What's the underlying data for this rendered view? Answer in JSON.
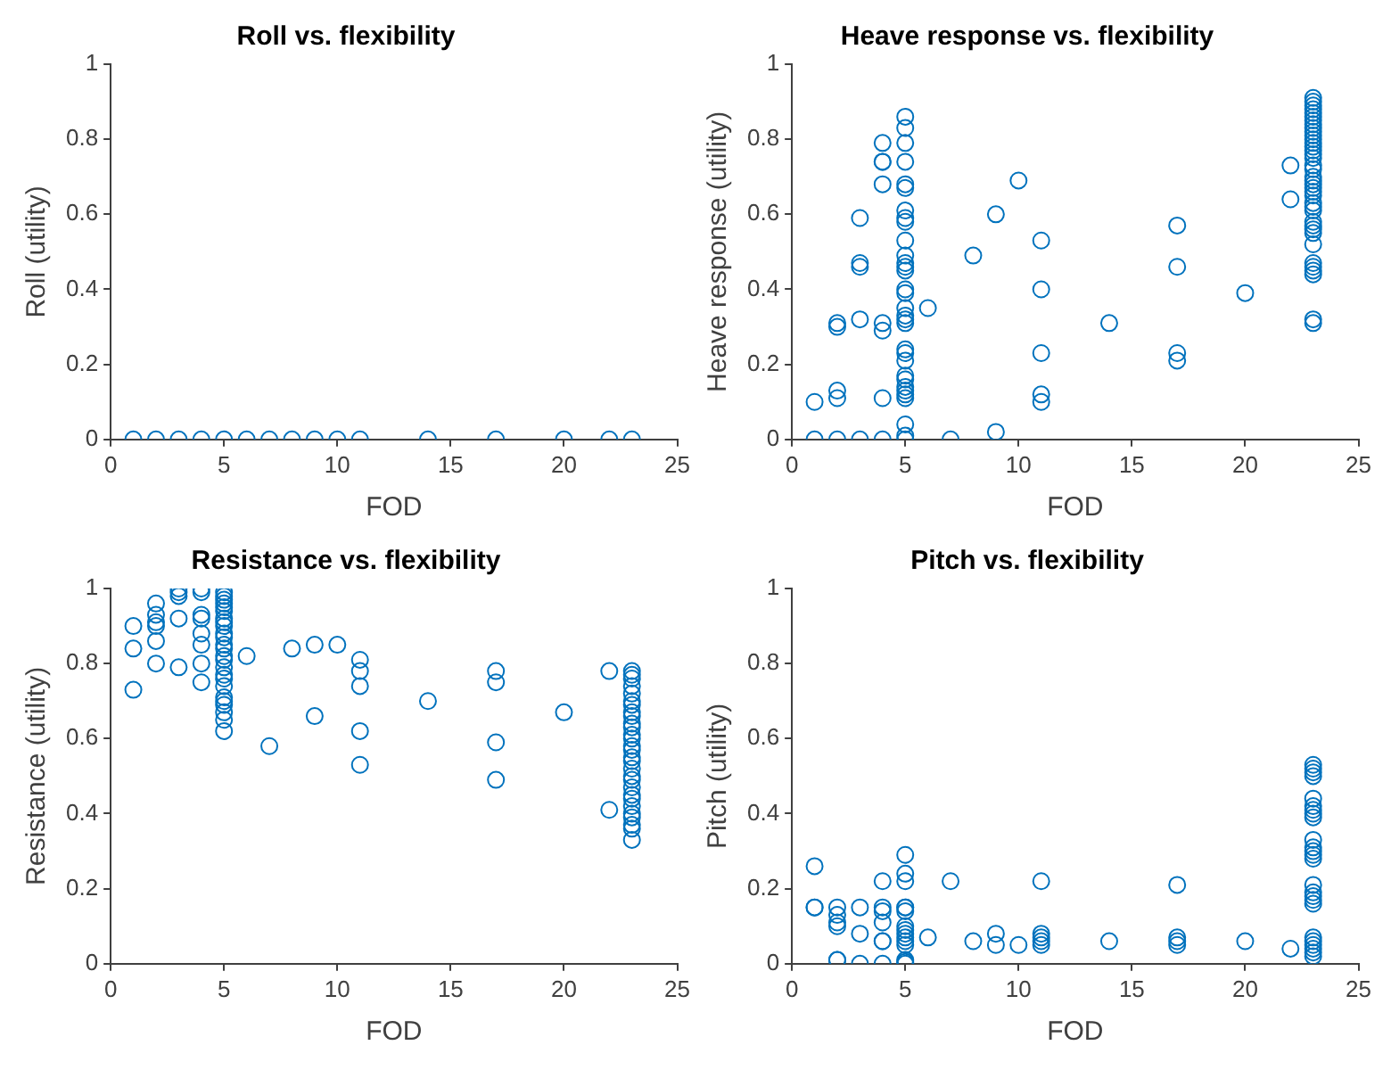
{
  "chart_data": [
    {
      "type": "scatter",
      "title": "Roll vs. flexibility",
      "xlabel": "FOD",
      "ylabel": "Roll (utility)",
      "xlim": [
        0,
        25
      ],
      "xticks": [
        0,
        5,
        10,
        15,
        20,
        25
      ],
      "ylim": [
        0,
        1
      ],
      "yticks": [
        0,
        0.2,
        0.4,
        0.6,
        0.8,
        1
      ],
      "grid": false,
      "marker": "circle",
      "legend": false,
      "series": [
        {
          "color": "#0072bd",
          "x": [
            1,
            2,
            3,
            4,
            5,
            6,
            7,
            8,
            9,
            10,
            11,
            14,
            17,
            20,
            22,
            23
          ],
          "values": [
            0,
            0,
            0,
            0,
            0,
            0,
            0,
            0,
            0,
            0,
            0,
            0,
            0,
            0,
            0,
            0
          ]
        }
      ]
    },
    {
      "type": "scatter",
      "title": "Heave response vs. flexibility",
      "xlabel": "FOD",
      "ylabel": "Heave response (utility)",
      "xlim": [
        0,
        25
      ],
      "xticks": [
        0,
        5,
        10,
        15,
        20,
        25
      ],
      "ylim": [
        0,
        1
      ],
      "yticks": [
        0,
        0.2,
        0.4,
        0.6,
        0.8,
        1
      ],
      "grid": false,
      "marker": "circle",
      "legend": false,
      "series": [
        {
          "color": "#0072bd",
          "x": [
            1,
            1,
            2,
            2,
            2,
            2,
            2,
            3,
            3,
            3,
            3,
            3,
            4,
            4,
            4,
            4,
            4,
            4,
            4,
            4,
            5,
            5,
            5,
            5,
            5,
            5,
            5,
            5,
            5,
            5,
            5,
            5,
            5,
            5,
            5,
            5,
            5,
            5,
            5,
            5,
            5,
            5,
            5,
            5,
            5,
            5,
            5,
            5,
            5,
            5,
            5,
            5,
            6,
            7,
            8,
            9,
            9,
            10,
            11,
            11,
            11,
            11,
            11,
            14,
            17,
            17,
            17,
            17,
            20,
            22,
            22,
            23,
            23,
            23,
            23,
            23,
            23,
            23,
            23,
            23,
            23,
            23,
            23,
            23,
            23,
            23,
            23,
            23,
            23,
            23,
            23,
            23,
            23,
            23,
            23,
            23,
            23,
            23,
            23,
            23,
            23,
            23,
            23,
            23,
            23,
            23,
            23,
            23,
            23,
            23
          ],
          "values": [
            0.1,
            0,
            0.31,
            0.3,
            0.13,
            0.11,
            0,
            0.59,
            0.47,
            0.46,
            0.32,
            0,
            0.79,
            0.74,
            0.74,
            0.68,
            0.31,
            0.29,
            0.11,
            0,
            0.86,
            0.83,
            0.79,
            0.74,
            0.68,
            0.67,
            0.61,
            0.59,
            0.58,
            0.53,
            0.49,
            0.47,
            0.46,
            0.45,
            0.4,
            0.39,
            0.35,
            0.33,
            0.32,
            0.31,
            0.24,
            0.23,
            0.21,
            0.17,
            0.16,
            0.14,
            0.13,
            0.12,
            0.11,
            0.04,
            0.01,
            0,
            0.35,
            0,
            0.49,
            0.6,
            0.02,
            0.69,
            0.53,
            0.4,
            0.23,
            0.12,
            0.1,
            0.31,
            0.57,
            0.46,
            0.23,
            0.21,
            0.39,
            0.73,
            0.64,
            0.91,
            0.9,
            0.89,
            0.88,
            0.87,
            0.86,
            0.85,
            0.84,
            0.83,
            0.82,
            0.81,
            0.8,
            0.79,
            0.78,
            0.77,
            0.76,
            0.75,
            0.73,
            0.72,
            0.7,
            0.69,
            0.68,
            0.67,
            0.66,
            0.65,
            0.63,
            0.62,
            0.61,
            0.58,
            0.57,
            0.56,
            0.55,
            0.52,
            0.47,
            0.46,
            0.45,
            0.44,
            0.32,
            0.31
          ]
        }
      ]
    },
    {
      "type": "scatter",
      "title": "Resistance vs. flexibility",
      "xlabel": "FOD",
      "ylabel": "Resistance (utility)",
      "xlim": [
        0,
        25
      ],
      "xticks": [
        0,
        5,
        10,
        15,
        20,
        25
      ],
      "ylim": [
        0,
        1
      ],
      "yticks": [
        0,
        0.2,
        0.4,
        0.6,
        0.8,
        1
      ],
      "grid": false,
      "marker": "circle",
      "legend": false,
      "series": [
        {
          "color": "#0072bd",
          "x": [
            1,
            1,
            1,
            2,
            2,
            2,
            2,
            2,
            2,
            3,
            3,
            3,
            3,
            3,
            4,
            4,
            4,
            4,
            4,
            4,
            4,
            4,
            5,
            5,
            5,
            5,
            5,
            5,
            5,
            5,
            5,
            5,
            5,
            5,
            5,
            5,
            5,
            5,
            5,
            5,
            5,
            5,
            5,
            5,
            5,
            5,
            5,
            6,
            7,
            8,
            9,
            9,
            10,
            11,
            11,
            11,
            11,
            11,
            14,
            17,
            17,
            17,
            17,
            20,
            22,
            22,
            23,
            23,
            23,
            23,
            23,
            23,
            23,
            23,
            23,
            23,
            23,
            23,
            23,
            23,
            23,
            23,
            23,
            23,
            23,
            23,
            23,
            23,
            23,
            23,
            23,
            23,
            23,
            23,
            23
          ],
          "values": [
            0.9,
            0.84,
            0.73,
            0.96,
            0.93,
            0.91,
            0.9,
            0.86,
            0.8,
            1,
            0.99,
            0.98,
            0.92,
            0.79,
            1,
            0.99,
            0.93,
            0.92,
            0.88,
            0.85,
            0.8,
            0.75,
            0.99,
            0.98,
            0.97,
            0.96,
            0.95,
            0.94,
            0.92,
            0.91,
            0.9,
            0.88,
            0.87,
            0.85,
            0.84,
            0.82,
            0.81,
            0.79,
            0.77,
            0.76,
            0.74,
            0.71,
            0.7,
            0.69,
            0.67,
            0.65,
            0.62,
            0.82,
            0.58,
            0.84,
            0.85,
            0.66,
            0.85,
            0.81,
            0.78,
            0.74,
            0.62,
            0.53,
            0.7,
            0.78,
            0.75,
            0.59,
            0.49,
            0.67,
            0.78,
            0.41,
            0.78,
            0.77,
            0.76,
            0.74,
            0.72,
            0.7,
            0.69,
            0.67,
            0.66,
            0.64,
            0.63,
            0.61,
            0.6,
            0.58,
            0.57,
            0.55,
            0.54,
            0.52,
            0.5,
            0.49,
            0.47,
            0.45,
            0.44,
            0.42,
            0.4,
            0.39,
            0.37,
            0.36,
            0.33
          ]
        }
      ]
    },
    {
      "type": "scatter",
      "title": "Pitch vs. flexibility",
      "xlabel": "FOD",
      "ylabel": "Pitch (utility)",
      "xlim": [
        0,
        25
      ],
      "xticks": [
        0,
        5,
        10,
        15,
        20,
        25
      ],
      "ylim": [
        0,
        1
      ],
      "yticks": [
        0,
        0.2,
        0.4,
        0.6,
        0.8,
        1
      ],
      "grid": false,
      "marker": "circle",
      "legend": false,
      "series": [
        {
          "color": "#0072bd",
          "x": [
            1,
            1,
            1,
            2,
            2,
            2,
            2,
            2,
            2,
            3,
            3,
            3,
            4,
            4,
            4,
            4,
            4,
            4,
            4,
            5,
            5,
            5,
            5,
            5,
            5,
            5,
            5,
            5,
            5,
            5,
            5,
            5,
            5,
            5,
            6,
            7,
            8,
            9,
            9,
            10,
            11,
            11,
            11,
            11,
            11,
            14,
            17,
            17,
            17,
            17,
            20,
            22,
            23,
            23,
            23,
            23,
            23,
            23,
            23,
            23,
            23,
            23,
            23,
            23,
            23,
            23,
            23,
            23,
            23,
            23,
            23,
            23,
            23,
            23,
            23,
            23,
            23
          ],
          "values": [
            0.26,
            0.15,
            0.15,
            0.15,
            0.13,
            0.11,
            0.1,
            0.01,
            0.01,
            0.15,
            0.08,
            0,
            0.22,
            0.15,
            0.14,
            0.11,
            0.06,
            0.06,
            0,
            0.29,
            0.24,
            0.22,
            0.15,
            0.15,
            0.14,
            0.1,
            0.09,
            0.08,
            0.07,
            0.06,
            0.05,
            0.01,
            0.005,
            0,
            0.07,
            0.22,
            0.06,
            0.08,
            0.05,
            0.05,
            0.22,
            0.08,
            0.07,
            0.06,
            0.05,
            0.06,
            0.21,
            0.07,
            0.06,
            0.05,
            0.06,
            0.04,
            0.53,
            0.52,
            0.51,
            0.5,
            0.44,
            0.42,
            0.41,
            0.4,
            0.39,
            0.33,
            0.31,
            0.3,
            0.29,
            0.28,
            0.21,
            0.19,
            0.18,
            0.17,
            0.16,
            0.07,
            0.06,
            0.05,
            0.04,
            0.03,
            0.02
          ]
        }
      ]
    }
  ]
}
